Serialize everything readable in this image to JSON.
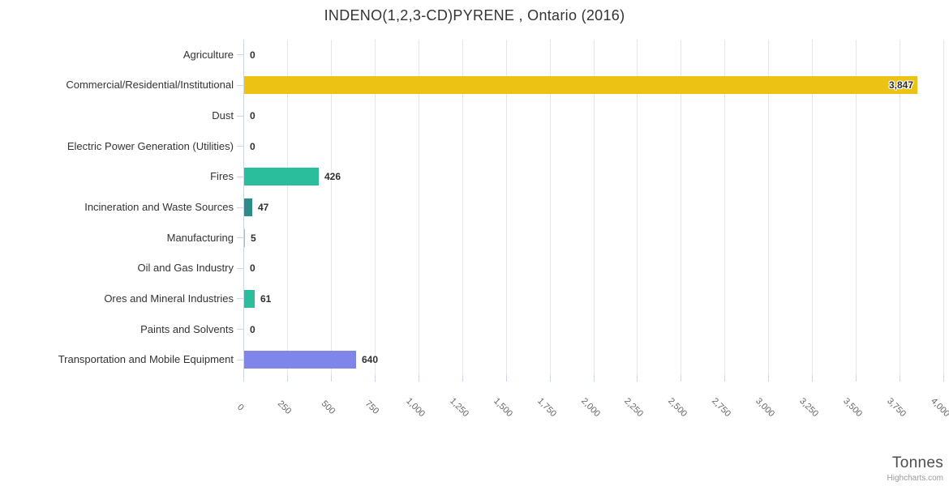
{
  "chart_data": {
    "type": "bar",
    "orientation": "horizontal",
    "title": "INDENO(1,2,3-CD)PYRENE , Ontario (2016)",
    "categories": [
      "Agriculture",
      "Commercial/Residential/Institutional",
      "Dust",
      "Electric Power Generation (Utilities)",
      "Fires",
      "Incineration and Waste Sources",
      "Manufacturing",
      "Oil and Gas Industry",
      "Ores and Mineral Industries",
      "Paints and Solvents",
      "Transportation and Mobile Equipment"
    ],
    "values": [
      0,
      3847,
      0,
      0,
      426,
      47,
      5,
      0,
      61,
      0,
      640
    ],
    "value_labels": [
      "0",
      "3,847",
      "0",
      "0",
      "426",
      "47",
      "5",
      "0",
      "61",
      "0",
      "640"
    ],
    "bar_colors": [
      null,
      "#ecc214",
      null,
      null,
      "#2bbe9d",
      "#2e8b8a",
      "#f7a35c",
      null,
      "#2bbe9d",
      null,
      "#8085e9"
    ],
    "xlabel": "Tonnes",
    "x_ticks": [
      "0",
      "250",
      "500",
      "750",
      "1,000",
      "1,250",
      "1,500",
      "1,750",
      "2,000",
      "2,250",
      "2,500",
      "2,750",
      "3,000",
      "3,250",
      "3,500",
      "3,750",
      "4,000"
    ],
    "xlim": [
      0,
      4000
    ],
    "grid": true,
    "legend": "none",
    "credits": "Highcharts.com"
  },
  "colors": {
    "grid": "#e6e6e6",
    "axis_line": "#ccd6eb",
    "tick": "#ccd6eb",
    "category_label": "#333333",
    "tick_label": "#666666",
    "data_label": "#2f2f2f",
    "title": "#333333",
    "axis_title": "#4d4d4d",
    "credits": "#999999",
    "background": "#ffffff"
  }
}
